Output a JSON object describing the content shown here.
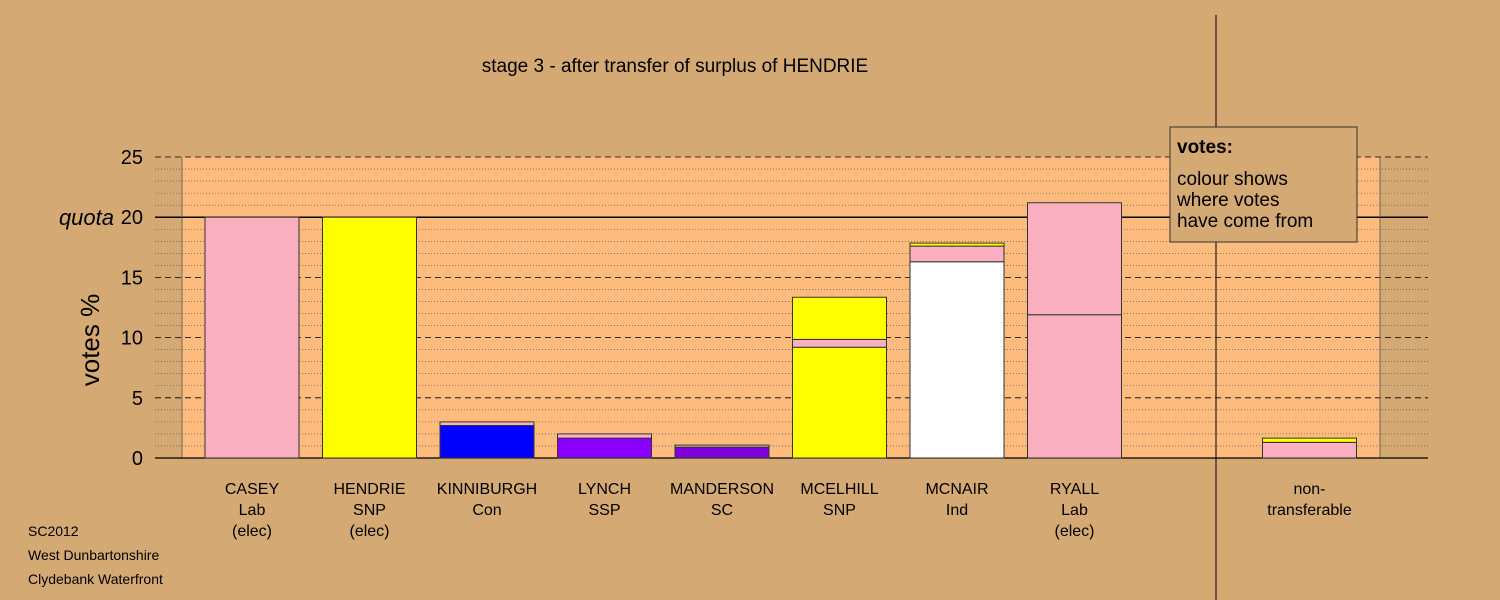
{
  "chart_data": {
    "type": "stacked-bar",
    "title": "stage 3 - after transfer of surplus of HENDRIE",
    "y_label": "votes %",
    "quota": {
      "value": 20,
      "label": "quota"
    },
    "categories": [
      [
        "CASEY",
        "Lab",
        "(elec)"
      ],
      [
        "HENDRIE",
        "SNP",
        "(elec)"
      ],
      [
        "KINNIBURGH",
        "Con"
      ],
      [
        "LYNCH",
        "SSP"
      ],
      [
        "MANDERSON",
        "SC"
      ],
      [
        "MCELHILL",
        "SNP"
      ],
      [
        "MCNAIR",
        "Ind"
      ],
      [
        "RYALL",
        "Lab",
        "(elec)"
      ],
      null,
      [
        "non-",
        "transferable"
      ]
    ],
    "series": [
      {
        "values": [
          20,
          20,
          2.7,
          1.65,
          0.9,
          9.2,
          16.3,
          11.9,
          null,
          1.3
        ],
        "colors": [
          "#f9afc0",
          "#ffff00",
          "#0000ff",
          "#8c00ff",
          "#7f00df",
          "#ffff00",
          "#ffffff",
          "#f9afc0",
          null,
          "#f9afc0"
        ]
      },
      {
        "values": [
          null,
          null,
          0.3,
          0.35,
          0.17,
          0.65,
          1.3,
          9.3,
          null,
          0.35
        ],
        "colors": [
          null,
          null,
          "#f9afc0",
          "#f9afc0",
          "#f9afc0",
          "#f9afc0",
          "#f9afc0",
          "#f9afc0",
          null,
          "#ffff00"
        ]
      },
      {
        "values": [
          null,
          null,
          null,
          null,
          null,
          3.5,
          0.25,
          null,
          null,
          null
        ],
        "colors": [
          null,
          null,
          null,
          null,
          null,
          "#ffff00",
          "#ffff00",
          null,
          null,
          null
        ]
      }
    ],
    "ylim": [
      0,
      25
    ],
    "yticks": [
      0,
      5,
      10,
      15,
      20,
      25
    ],
    "grid": true,
    "legend": {
      "title": "votes:",
      "lines": [
        "colour shows",
        "where votes",
        "have come from"
      ]
    },
    "footer": [
      "SC2012",
      "West Dunbartonshire",
      "Clydebank Waterfront"
    ]
  }
}
